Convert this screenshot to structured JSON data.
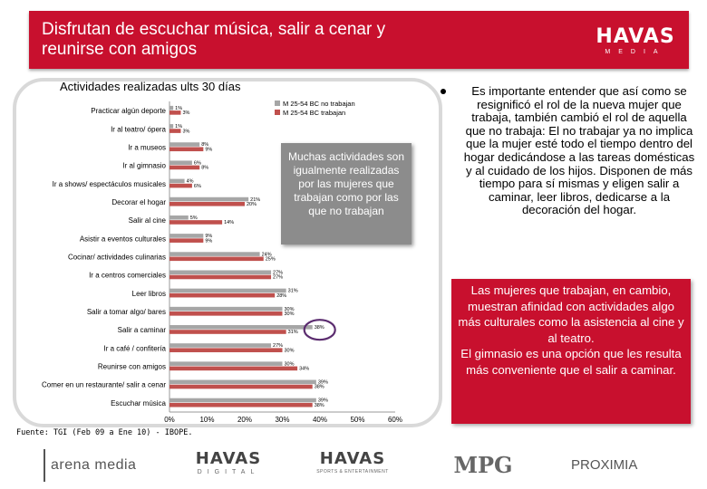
{
  "header": {
    "title": "Disfrutan de escuchar música, salir a cenar y\nreunirse con amigos",
    "logo_main": "HAVAS",
    "logo_sub": "MEDIA"
  },
  "callouts": {
    "gray": "Muchas actividades son igualmente realizadas por las mujeres que trabajan como por las que no trabajan",
    "bullet": "Es importante entender que así como se resignificó el rol de la nueva mujer que trabaja, también cambió el rol de aquella que no trabaja: El no trabajar ya no implica que la mujer esté todo el tiempo dentro del hogar dedicándose a las tareas domésticas y al cuidado de los hijos. Disponen de más tiempo para sí mismas y eligen salir a caminar, leer libros, dedicarse a la decoración del hogar.",
    "red": "Las mujeres que trabajan, en cambio, muestran afinidad con actividades algo más culturales como la asistencia al cine y al teatro.\nEl gimnasio es una opción que les resulta más conveniente que el salir a caminar."
  },
  "source": "Fuente: TGI (Feb 09 a Ene 10) - IBOPE.",
  "footer": {
    "arena": "arena media",
    "havas_digital_main": "HAVAS",
    "havas_digital_sub": "DIGITAL",
    "havas_sports_main": "HAVAS",
    "havas_sports_sub": "SPORTS & ENTERTAINMENT",
    "mpg": "MPG",
    "proximia": "PROXIMIA"
  },
  "chart_data": {
    "type": "bar",
    "orientation": "horizontal",
    "title": "Actividades realizadas ults 30 días",
    "xlim": [
      0,
      60
    ],
    "xticks": [
      "0%",
      "10%",
      "20%",
      "30%",
      "40%",
      "50%",
      "60%"
    ],
    "xtick_values": [
      0,
      10,
      20,
      30,
      40,
      50,
      60
    ],
    "highlighted_category": "Salir a caminar",
    "colors": {
      "no_trabajan": "#a6a6a6",
      "trabajan": "#c0504d"
    },
    "categories": [
      "Practicar algún deporte",
      "Ir al teatro/ ópera",
      "Ir a museos",
      "Ir al gimnasio",
      "Ir a shows/ espectáculos musicales",
      "Decorar el hogar",
      "Salir al cine",
      "Asistir a eventos culturales",
      "Cocinar/ actividades culinarias",
      "Ir a centros comerciales",
      "Leer libros",
      "Salir a tomar algo/ bares",
      "Salir a caminar",
      "Ir a café / confitería",
      "Reunirse con amigos",
      "Comer en un restaurante/ salir a cenar",
      "Escuchar música"
    ],
    "series": [
      {
        "name": "M 25-54 BC no trabajan",
        "values": [
          1,
          1,
          8,
          6,
          4,
          21,
          5,
          9,
          24,
          27,
          31,
          30,
          38,
          27,
          30,
          39,
          39
        ],
        "labels": [
          "1%",
          "1%",
          "8%",
          "6%",
          "4%",
          "21%",
          "5%",
          "9%",
          "24%",
          "27%",
          "31%",
          "30%",
          "38%",
          "27%",
          "30%",
          "39%",
          "39%"
        ]
      },
      {
        "name": "M 25-54 BC trabajan",
        "values": [
          3,
          3,
          9,
          8,
          6,
          20,
          14,
          9,
          25,
          27,
          28,
          30,
          31,
          30,
          34,
          38,
          38
        ],
        "labels": [
          "3%",
          "3%",
          "9%",
          "8%",
          "6%",
          "20%",
          "14%",
          "9%",
          "25%",
          "27%",
          "28%",
          "30%",
          "31%",
          "30%",
          "34%",
          "38%",
          "38%"
        ]
      }
    ]
  }
}
